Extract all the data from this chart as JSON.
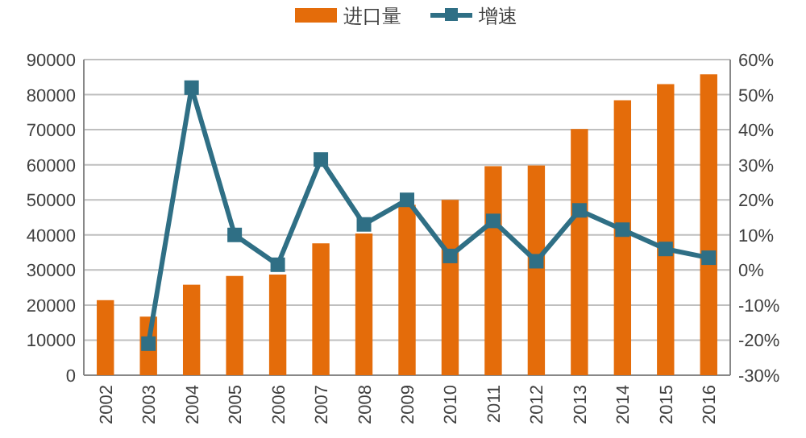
{
  "chart_data": {
    "type": "bar",
    "categories": [
      "2002",
      "2003",
      "2004",
      "2005",
      "2006",
      "2007",
      "2008",
      "2009",
      "2010",
      "2011",
      "2012",
      "2013",
      "2014",
      "2015",
      "2016"
    ],
    "series": [
      {
        "name": "进口量",
        "color": "#e46c0a",
        "values": [
          21400,
          16700,
          25800,
          28300,
          28700,
          37600,
          40400,
          48600,
          50000,
          59600,
          59800,
          70200,
          78400,
          83000,
          85800
        ]
      },
      {
        "name": "增速",
        "type": "line",
        "axis": "y2",
        "color": "#2f6f85",
        "values": [
          null,
          -21,
          52,
          10,
          1.5,
          31.5,
          13,
          20,
          4,
          14,
          2.5,
          17,
          11.5,
          6,
          3.5
        ]
      }
    ],
    "ylim": [
      0,
      90000
    ],
    "yticks": [
      0,
      10000,
      20000,
      30000,
      40000,
      50000,
      60000,
      70000,
      80000,
      90000
    ],
    "y2lim": [
      -30,
      60
    ],
    "y2ticks": [
      {
        "value": -30,
        "label": "-30%"
      },
      {
        "value": -20,
        "label": "-20%"
      },
      {
        "value": -10,
        "label": "-10%"
      },
      {
        "value": 0,
        "label": "0%"
      },
      {
        "value": 10,
        "label": "10%"
      },
      {
        "value": 20,
        "label": "20%"
      },
      {
        "value": 30,
        "label": "30%"
      },
      {
        "value": 40,
        "label": "40%"
      },
      {
        "value": 50,
        "label": "50%"
      },
      {
        "value": 60,
        "label": "60%"
      }
    ],
    "grid": "y",
    "legend": "top",
    "marker": "square"
  }
}
